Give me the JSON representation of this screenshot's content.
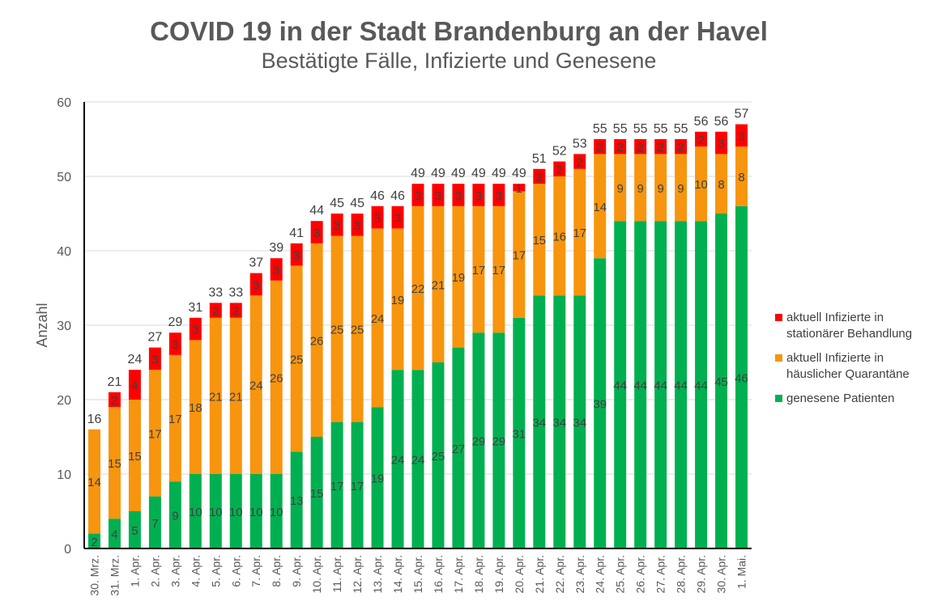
{
  "chart_data": {
    "type": "bar",
    "stacked": true,
    "title": "COVID 19 in der Stadt Brandenburg an der Havel",
    "subtitle": "Bestätigte Fälle, Infizierte und Genesene",
    "xlabel": "",
    "ylabel": "Anzahl",
    "ylim": [
      0,
      60
    ],
    "yticks": [
      0,
      10,
      20,
      30,
      40,
      50,
      60
    ],
    "grid": true,
    "legend_position": "right",
    "categories": [
      "30. Mrz.",
      "31. Mrz.",
      "1. Apr.",
      "2. Apr.",
      "3. Apr.",
      "4. Apr.",
      "5. Apr.",
      "6. Apr.",
      "7. Apr.",
      "8. Apr.",
      "9. Apr.",
      "10. Apr.",
      "11. Apr.",
      "12. Apr.",
      "13. Apr.",
      "14. Apr.",
      "15. Apr.",
      "16. Apr.",
      "17. Apr.",
      "18. Apr.",
      "19. Apr.",
      "20. Apr.",
      "21. Apr.",
      "22. Apr.",
      "23. Apr.",
      "24. Apr.",
      "25. Apr.",
      "26. Apr.",
      "27. Apr.",
      "28. Apr.",
      "29. Apr.",
      "30. Apr.",
      "1. Mai."
    ],
    "series": [
      {
        "name": "genesene Patienten",
        "color": "#00b050",
        "values": [
          2,
          4,
          5,
          7,
          9,
          10,
          10,
          10,
          10,
          10,
          13,
          15,
          17,
          17,
          19,
          24,
          24,
          25,
          27,
          29,
          29,
          31,
          34,
          34,
          34,
          39,
          44,
          44,
          44,
          44,
          44,
          45,
          46
        ]
      },
      {
        "name": "aktuell Infizierte in häuslicher Quarantäne",
        "color": "#f7950e",
        "values": [
          14,
          15,
          15,
          17,
          17,
          18,
          21,
          21,
          24,
          26,
          25,
          26,
          25,
          25,
          24,
          19,
          22,
          21,
          19,
          17,
          17,
          17,
          15,
          16,
          17,
          14,
          9,
          9,
          9,
          9,
          10,
          8,
          8
        ]
      },
      {
        "name": "aktuell Infizierte in stationärer Behandlung",
        "color": "#ff0000",
        "values": [
          0,
          2,
          4,
          3,
          3,
          3,
          2,
          2,
          3,
          3,
          3,
          3,
          3,
          3,
          3,
          3,
          3,
          3,
          3,
          3,
          3,
          1,
          2,
          2,
          2,
          2,
          2,
          2,
          2,
          2,
          2,
          3,
          3
        ]
      }
    ],
    "totals": [
      16,
      21,
      24,
      27,
      29,
      31,
      33,
      33,
      37,
      39,
      41,
      44,
      45,
      45,
      46,
      46,
      49,
      49,
      49,
      49,
      49,
      49,
      51,
      52,
      53,
      55,
      55,
      55,
      55,
      55,
      56,
      56,
      57
    ]
  },
  "legend": [
    {
      "label_line1": "aktuell Infizierte in",
      "label_line2": "stationärer Behandlung",
      "color": "#ff0000"
    },
    {
      "label_line1": "aktuell Infizierte in",
      "label_line2": "häuslicher Quarantäne",
      "color": "#f7950e"
    },
    {
      "label_line1": "genesene Patienten",
      "label_line2": "",
      "color": "#00b050"
    }
  ]
}
